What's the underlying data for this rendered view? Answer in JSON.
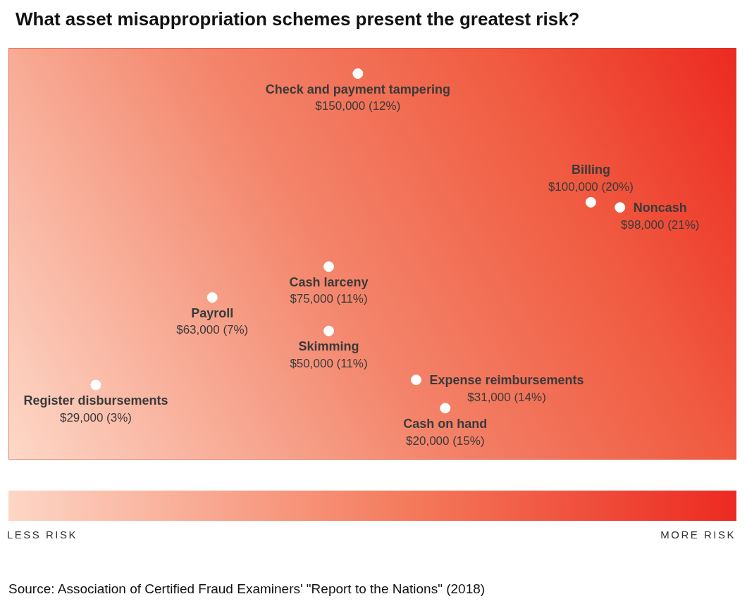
{
  "chart_data": {
    "type": "scatter",
    "title": "What asset misappropriation schemes present the greatest risk?",
    "labels": [
      "Check and payment tampering",
      "Billing",
      "Noncash",
      "Cash larceny",
      "Payroll",
      "Skimming",
      "Register disbursements",
      "Expense reimbursements",
      "Cash on hand"
    ],
    "x": [
      12,
      20,
      21,
      11,
      7,
      11,
      3,
      14,
      15
    ],
    "values": [
      150000,
      100000,
      98000,
      75000,
      63000,
      50000,
      29000,
      31000,
      20000
    ],
    "value_labels": [
      "$150,000 (12%)",
      "$100,000 (20%)",
      "$98,000 (21%)",
      "$75,000 (11%)",
      "$63,000 (7%)",
      "$50,000 (11%)",
      "$29,000 (3%)",
      "$31,000 (14%)",
      "$20,000 (15%)"
    ],
    "xlim": [
      0,
      25
    ],
    "ylim": [
      0,
      160000
    ],
    "grid": false,
    "tick_labels": false,
    "data_labels": true,
    "color": "#ffffff",
    "marker": "circle",
    "colorbar": {
      "labels": [
        "LESS RISK",
        "MORE RISK"
      ]
    },
    "source": "Source: Association of Certified Fraud Examiners' \"Report to the Nations\" (2018)"
  }
}
